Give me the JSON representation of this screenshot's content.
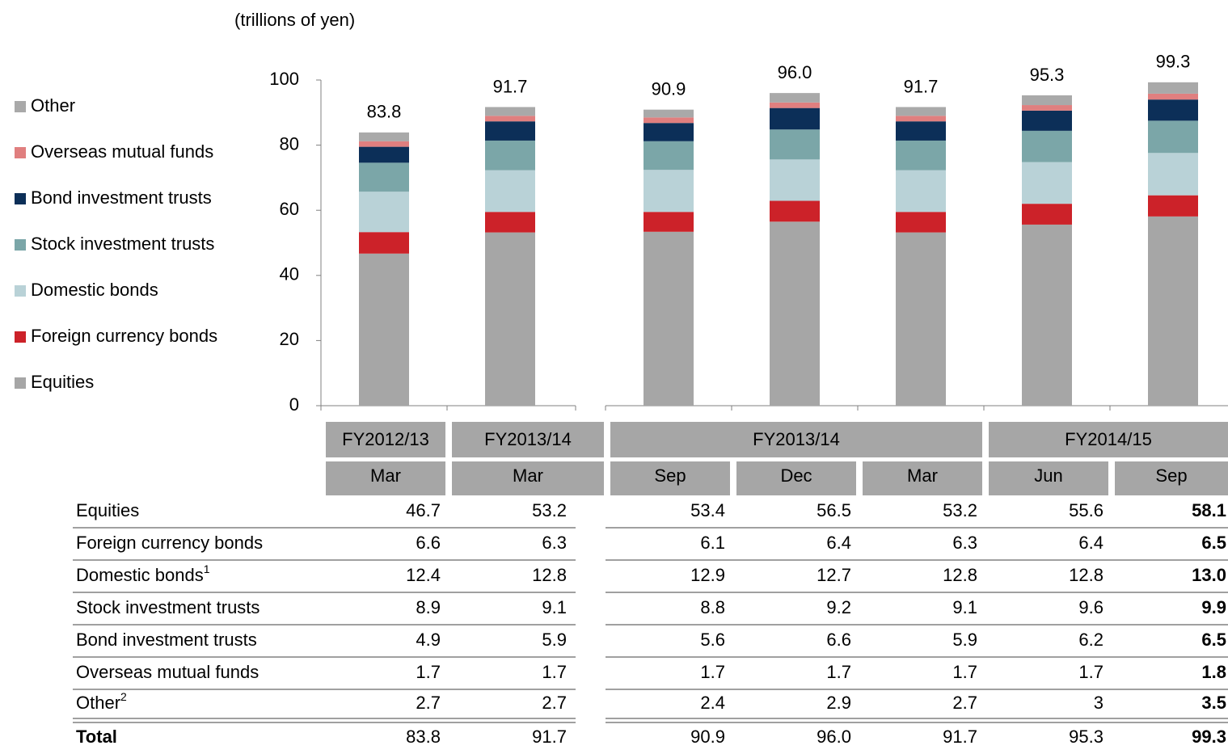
{
  "chart_data": {
    "type": "stacked_bar",
    "unit_label": "(trillions of yen)",
    "column_groups": [
      {
        "label": "FY2012/13",
        "columns": [
          "Mar"
        ]
      },
      {
        "label": "FY2013/14",
        "columns": [
          "Mar"
        ]
      },
      {
        "label": "FY2013/14",
        "columns": [
          "Sep",
          "Dec",
          "Mar"
        ]
      },
      {
        "label": "FY2014/15",
        "columns": [
          "Jun",
          "Sep"
        ]
      }
    ],
    "series": [
      {
        "name": "Equities",
        "color": "#a6a6a6",
        "values": [
          46.7,
          53.2,
          53.4,
          56.5,
          53.2,
          55.6,
          58.1
        ]
      },
      {
        "name": "Foreign currency bonds",
        "color": "#cc2229",
        "values": [
          6.6,
          6.3,
          6.1,
          6.4,
          6.3,
          6.4,
          6.5
        ]
      },
      {
        "name": "Domestic bonds",
        "footnote": "1",
        "color": "#b9d2d7",
        "values": [
          12.4,
          12.8,
          12.9,
          12.7,
          12.8,
          12.8,
          13.0
        ],
        "value_labels": [
          "12.4",
          "12.8",
          "12.9",
          "12.7",
          "12.8",
          "12.8",
          "13.0"
        ]
      },
      {
        "name": "Stock investment trusts",
        "color": "#7ba6a8",
        "values": [
          8.9,
          9.1,
          8.8,
          9.2,
          9.1,
          9.6,
          9.9
        ]
      },
      {
        "name": "Bond investment trusts",
        "color": "#0c2f58",
        "values": [
          4.9,
          5.9,
          5.6,
          6.6,
          5.9,
          6.2,
          6.5
        ]
      },
      {
        "name": "Overseas mutual funds",
        "color": "#e07f7f",
        "values": [
          1.7,
          1.7,
          1.7,
          1.7,
          1.7,
          1.7,
          1.8
        ]
      },
      {
        "name": "Other",
        "footnote": "2",
        "color": "#a9a9a9",
        "values": [
          2.7,
          2.7,
          2.4,
          2.9,
          2.7,
          3.0,
          3.5
        ]
      }
    ],
    "total_label": "Total",
    "totals": [
      83.8,
      91.7,
      90.9,
      96.0,
      91.7,
      95.3,
      99.3
    ],
    "total_labels": [
      "83.8",
      "91.7",
      "90.9",
      "96.0",
      "91.7",
      "95.3",
      "99.3"
    ],
    "ylim": [
      0,
      100
    ],
    "yticks": [
      0,
      20,
      40,
      60,
      80,
      100
    ]
  }
}
